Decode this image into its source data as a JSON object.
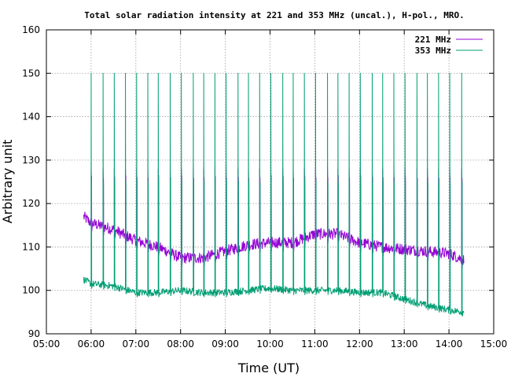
{
  "chart_data": {
    "type": "line",
    "title": "Total solar radiation intensity at 221 and 353 MHz (uncal.), H-pol., MRO.",
    "xlabel": "Time (UT)",
    "ylabel": "Arbitrary unit",
    "xlim": [
      "05:00",
      "15:00"
    ],
    "ylim": [
      90,
      160
    ],
    "x_ticks": [
      "05:00",
      "06:00",
      "07:00",
      "08:00",
      "09:00",
      "10:00",
      "11:00",
      "12:00",
      "13:00",
      "14:00",
      "15:00"
    ],
    "y_ticks": [
      "90",
      "100",
      "110",
      "120",
      "130",
      "140",
      "150",
      "160"
    ],
    "grid": true,
    "legend_position": "top-right",
    "colors": {
      "series_221": "#9400d3",
      "series_353": "#009e73",
      "grid": "#a0a0a0",
      "axis": "#000000"
    },
    "series": [
      {
        "name": "221 MHz",
        "color": "#9400d3",
        "time_range": [
          "05:50",
          "14:20"
        ],
        "baseline_points": [
          {
            "x": "05:50",
            "y": 117
          },
          {
            "x": "06:00",
            "y": 115.5
          },
          {
            "x": "06:30",
            "y": 114
          },
          {
            "x": "07:00",
            "y": 111.5
          },
          {
            "x": "07:30",
            "y": 110
          },
          {
            "x": "08:00",
            "y": 107.5
          },
          {
            "x": "08:30",
            "y": 107.5
          },
          {
            "x": "09:00",
            "y": 109
          },
          {
            "x": "09:30",
            "y": 110.5
          },
          {
            "x": "10:00",
            "y": 111
          },
          {
            "x": "10:30",
            "y": 111
          },
          {
            "x": "11:00",
            "y": 113
          },
          {
            "x": "11:30",
            "y": 113
          },
          {
            "x": "12:00",
            "y": 111
          },
          {
            "x": "12:30",
            "y": 110
          },
          {
            "x": "13:00",
            "y": 109.5
          },
          {
            "x": "13:30",
            "y": 109
          },
          {
            "x": "14:00",
            "y": 108.5
          },
          {
            "x": "14:20",
            "y": 107
          }
        ],
        "calibration_peak_y": 128,
        "calibration_step_y": 126
      },
      {
        "name": "353 MHz",
        "color": "#009e73",
        "time_range": [
          "05:50",
          "14:20"
        ],
        "baseline_points": [
          {
            "x": "05:50",
            "y": 102.5
          },
          {
            "x": "06:00",
            "y": 101.5
          },
          {
            "x": "06:30",
            "y": 101
          },
          {
            "x": "07:00",
            "y": 99.5
          },
          {
            "x": "07:30",
            "y": 99.5
          },
          {
            "x": "08:00",
            "y": 100
          },
          {
            "x": "08:30",
            "y": 99.5
          },
          {
            "x": "09:00",
            "y": 99.5
          },
          {
            "x": "09:30",
            "y": 100
          },
          {
            "x": "10:00",
            "y": 100.5
          },
          {
            "x": "10:30",
            "y": 100
          },
          {
            "x": "11:00",
            "y": 100
          },
          {
            "x": "11:30",
            "y": 100
          },
          {
            "x": "12:00",
            "y": 99.5
          },
          {
            "x": "12:30",
            "y": 99.5
          },
          {
            "x": "13:00",
            "y": 98
          },
          {
            "x": "13:30",
            "y": 96.5
          },
          {
            "x": "14:00",
            "y": 95.5
          },
          {
            "x": "14:20",
            "y": 95
          }
        ],
        "calibration_peak_y": 150,
        "calibration_step_y": 125
      }
    ],
    "calibration_pulse_times": [
      "06:00",
      "06:16",
      "06:31",
      "06:46",
      "07:01",
      "07:16",
      "07:30",
      "07:46",
      "08:01",
      "08:17",
      "08:31",
      "08:46",
      "09:01",
      "09:17",
      "09:31",
      "09:46",
      "10:01",
      "10:17",
      "10:31",
      "10:46",
      "11:01",
      "11:17",
      "11:31",
      "11:46",
      "12:01",
      "12:17",
      "12:31",
      "12:46",
      "13:01",
      "13:17",
      "13:31",
      "13:46",
      "14:01",
      "14:17"
    ]
  }
}
